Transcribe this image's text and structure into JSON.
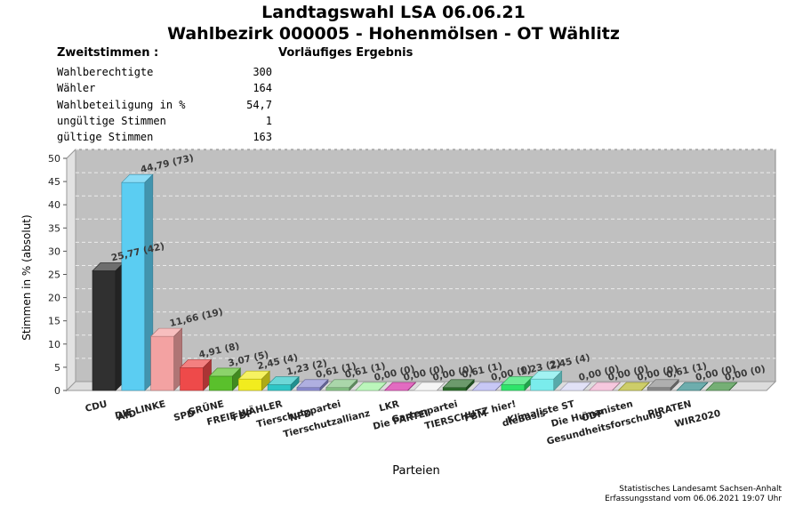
{
  "header": {
    "title_line1": "Landtagswahl LSA 06.06.21",
    "title_line2": "Wahlbezirk 000005 - Hohenmölsen - OT Wählitz",
    "subtitle": "Zweitstimmen :",
    "status": "Vorläufiges Ergebnis"
  },
  "stats": [
    {
      "label": "Wahlberechtigte",
      "value": "300"
    },
    {
      "label": "Wähler",
      "value": "164"
    },
    {
      "label": "Wahlbeteiligung in %",
      "value": "54,7"
    },
    {
      "label": "ungültige Stimmen",
      "value": "1"
    },
    {
      "label": "gültige Stimmen",
      "value": "163"
    }
  ],
  "chart_data": {
    "type": "bar",
    "xlabel": "Parteien",
    "ylabel": "Stimmen in % (absolut)",
    "ylim": [
      0,
      50
    ],
    "yticks": [
      "0",
      "5",
      "10",
      "15",
      "20",
      "25",
      "30",
      "35",
      "40",
      "45",
      "50"
    ],
    "grid": true,
    "categories": [
      "CDU",
      "AfD",
      "DIE LINKE",
      "SPD",
      "GRÜNE",
      "FDP",
      "FREIE WÄHLER",
      "NPD",
      "Tierschutzpartei",
      "Tierschutzallianz",
      "LKR",
      "Die PARTEI",
      "Gartenpartei",
      "FBM",
      "TIERSCHUTZ hier!",
      "dieBasis",
      "Klimaliste ST",
      "ÖDP",
      "Die Humanisten",
      "Gesundheitsforschung",
      "PIRATEN",
      "WIR2020"
    ],
    "values": [
      25.77,
      44.79,
      11.66,
      4.91,
      3.07,
      2.45,
      1.23,
      0.61,
      0.61,
      0.0,
      0.0,
      0.0,
      0.61,
      0.0,
      1.23,
      2.45,
      0.0,
      0.0,
      0.0,
      0.61,
      0.0,
      0.0
    ],
    "labels": [
      "25,77 (42)",
      "44,79 (73)",
      "11,66 (19)",
      "4,91 (8)",
      "3,07 (5)",
      "2,45 (4)",
      "1,23 (2)",
      "0,61 (1)",
      "0,61 (1)",
      "0,00 (0)",
      "0,00 (0)",
      "0,00 (0)",
      "0,61 (1)",
      "0,00 (0)",
      "1,23 (2)",
      "2,45 (4)",
      "0,00 (0)",
      "0,00 (0)",
      "0,00 (0)",
      "0,61 (1)",
      "0,00 (0)",
      "0,00 (0)"
    ],
    "colors": [
      "#303030",
      "#5bcdf2",
      "#f3a2a2",
      "#ee4a4a",
      "#5ac02c",
      "#f2ec1e",
      "#2ec6c6",
      "#8c8cd2",
      "#86c486",
      "#9ef29e",
      "#d62ca6",
      "#f0f0f0",
      "#2d6e2d",
      "#b0b0f0",
      "#2ee46a",
      "#7aecec",
      "#d4d4f2",
      "#f2b0d0",
      "#b8b828",
      "#8c8c8c",
      "#2e8a8a",
      "#3a8c3a"
    ]
  },
  "footer": {
    "line1": "Statistisches Landesamt Sachsen-Anhalt",
    "line2": "Erfassungsstand vom 06.06.2021 19:07 Uhr"
  }
}
